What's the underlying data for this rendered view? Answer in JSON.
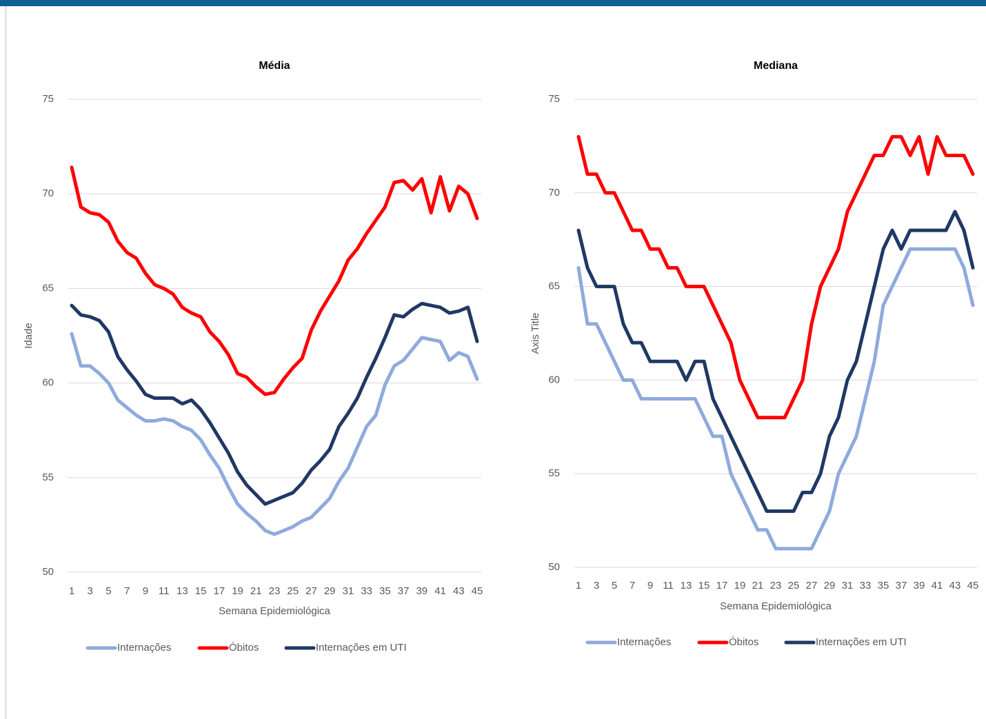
{
  "chart_data": [
    {
      "type": "line",
      "title": "Média",
      "x_label": "Semana Epidemiológica",
      "y_label": "Idade",
      "categories": [
        "1",
        null,
        "3",
        null,
        "5",
        null,
        "7",
        null,
        "9",
        null,
        "11",
        null,
        "13",
        null,
        "15",
        null,
        "17",
        null,
        "19",
        null,
        "21",
        null,
        "23",
        null,
        "25",
        null,
        "27",
        null,
        "29",
        null,
        "31",
        null,
        "33",
        null,
        "35",
        null,
        "37",
        null,
        "39",
        null,
        "41",
        null,
        "43",
        null,
        "45"
      ],
      "ylim": [
        50,
        75
      ],
      "yticks": [
        50,
        55,
        60,
        65,
        70,
        75
      ],
      "grid": true,
      "legend": "bottom",
      "series": [
        {
          "name": "Internações",
          "color": "#8faadc",
          "values": [
            62.6,
            60.9,
            60.9,
            60.5,
            60.0,
            59.1,
            58.7,
            58.3,
            58.0,
            58.0,
            58.1,
            58.0,
            57.7,
            57.5,
            57.0,
            56.2,
            55.5,
            54.5,
            53.6,
            53.1,
            52.7,
            52.2,
            52.0,
            52.2,
            52.4,
            52.7,
            52.9,
            53.4,
            53.9,
            54.8,
            55.5,
            56.6,
            57.7,
            58.3,
            59.9,
            60.9,
            61.2,
            61.8,
            62.4,
            62.3,
            62.2,
            61.2,
            61.6,
            61.4,
            60.2
          ]
        },
        {
          "name": "Óbitos",
          "color": "#ff0000",
          "values": [
            71.4,
            69.3,
            69.0,
            68.9,
            68.5,
            67.5,
            66.9,
            66.6,
            65.8,
            65.2,
            65.0,
            64.7,
            64.0,
            63.7,
            63.5,
            62.7,
            62.2,
            61.5,
            60.5,
            60.3,
            59.8,
            59.4,
            59.5,
            60.2,
            60.8,
            61.3,
            62.8,
            63.8,
            64.6,
            65.4,
            66.5,
            67.1,
            67.9,
            68.6,
            69.3,
            70.6,
            70.7,
            70.2,
            70.8,
            69.0,
            70.9,
            69.1,
            70.4,
            70.0,
            68.7
          ]
        },
        {
          "name": "Internações em UTI",
          "color": "#203864",
          "values": [
            64.1,
            63.6,
            63.5,
            63.3,
            62.7,
            61.4,
            60.7,
            60.1,
            59.4,
            59.2,
            59.2,
            59.2,
            58.9,
            59.1,
            58.6,
            57.9,
            57.1,
            56.3,
            55.3,
            54.6,
            54.1,
            53.6,
            53.8,
            54.0,
            54.2,
            54.7,
            55.4,
            55.9,
            56.5,
            57.7,
            58.4,
            59.2,
            60.3,
            61.3,
            62.4,
            63.6,
            63.5,
            63.9,
            64.2,
            64.1,
            64.0,
            63.7,
            63.8,
            64.0,
            62.2
          ]
        }
      ]
    },
    {
      "type": "line",
      "title": "Mediana",
      "x_label": "Semana Epidemiológica",
      "y_label": "Axis Title",
      "categories": [
        "1",
        null,
        "3",
        null,
        "5",
        null,
        "7",
        null,
        "9",
        null,
        "11",
        null,
        "13",
        null,
        "15",
        null,
        "17",
        null,
        "19",
        null,
        "21",
        null,
        "23",
        null,
        "25",
        null,
        "27",
        null,
        "29",
        null,
        "31",
        null,
        "33",
        null,
        "35",
        null,
        "37",
        null,
        "39",
        null,
        "41",
        null,
        "43",
        null,
        "45"
      ],
      "ylim": [
        50,
        75
      ],
      "yticks": [
        50,
        55,
        60,
        65,
        70,
        75
      ],
      "grid": true,
      "legend": "bottom",
      "series": [
        {
          "name": "Internações",
          "color": "#8faadc",
          "values": [
            66,
            63,
            63,
            62,
            61,
            60,
            60,
            59,
            59,
            59,
            59,
            59,
            59,
            59,
            58,
            57,
            57,
            55,
            54,
            53,
            52,
            52,
            51,
            51,
            51,
            51,
            51,
            52,
            53,
            55,
            56,
            57,
            59,
            61,
            64,
            65,
            66,
            67,
            67,
            67,
            67,
            67,
            67,
            66,
            64
          ]
        },
        {
          "name": "Óbitos",
          "color": "#ff0000",
          "values": [
            73,
            71,
            71,
            70,
            70,
            69,
            68,
            68,
            67,
            67,
            66,
            66,
            65,
            65,
            65,
            64,
            63,
            62,
            60,
            59,
            58,
            58,
            58,
            58,
            59,
            60,
            63,
            65,
            66,
            67,
            69,
            70,
            71,
            72,
            72,
            73,
            73,
            72,
            73,
            71,
            73,
            72,
            72,
            72,
            71
          ]
        },
        {
          "name": "Internações em UTI",
          "color": "#203864",
          "values": [
            68,
            66,
            65,
            65,
            65,
            63,
            62,
            62,
            61,
            61,
            61,
            61,
            60,
            61,
            61,
            59,
            58,
            57,
            56,
            55,
            54,
            53,
            53,
            53,
            53,
            54,
            54,
            55,
            57,
            58,
            60,
            61,
            63,
            65,
            67,
            68,
            67,
            68,
            68,
            68,
            68,
            68,
            69,
            68,
            66
          ]
        }
      ]
    }
  ]
}
